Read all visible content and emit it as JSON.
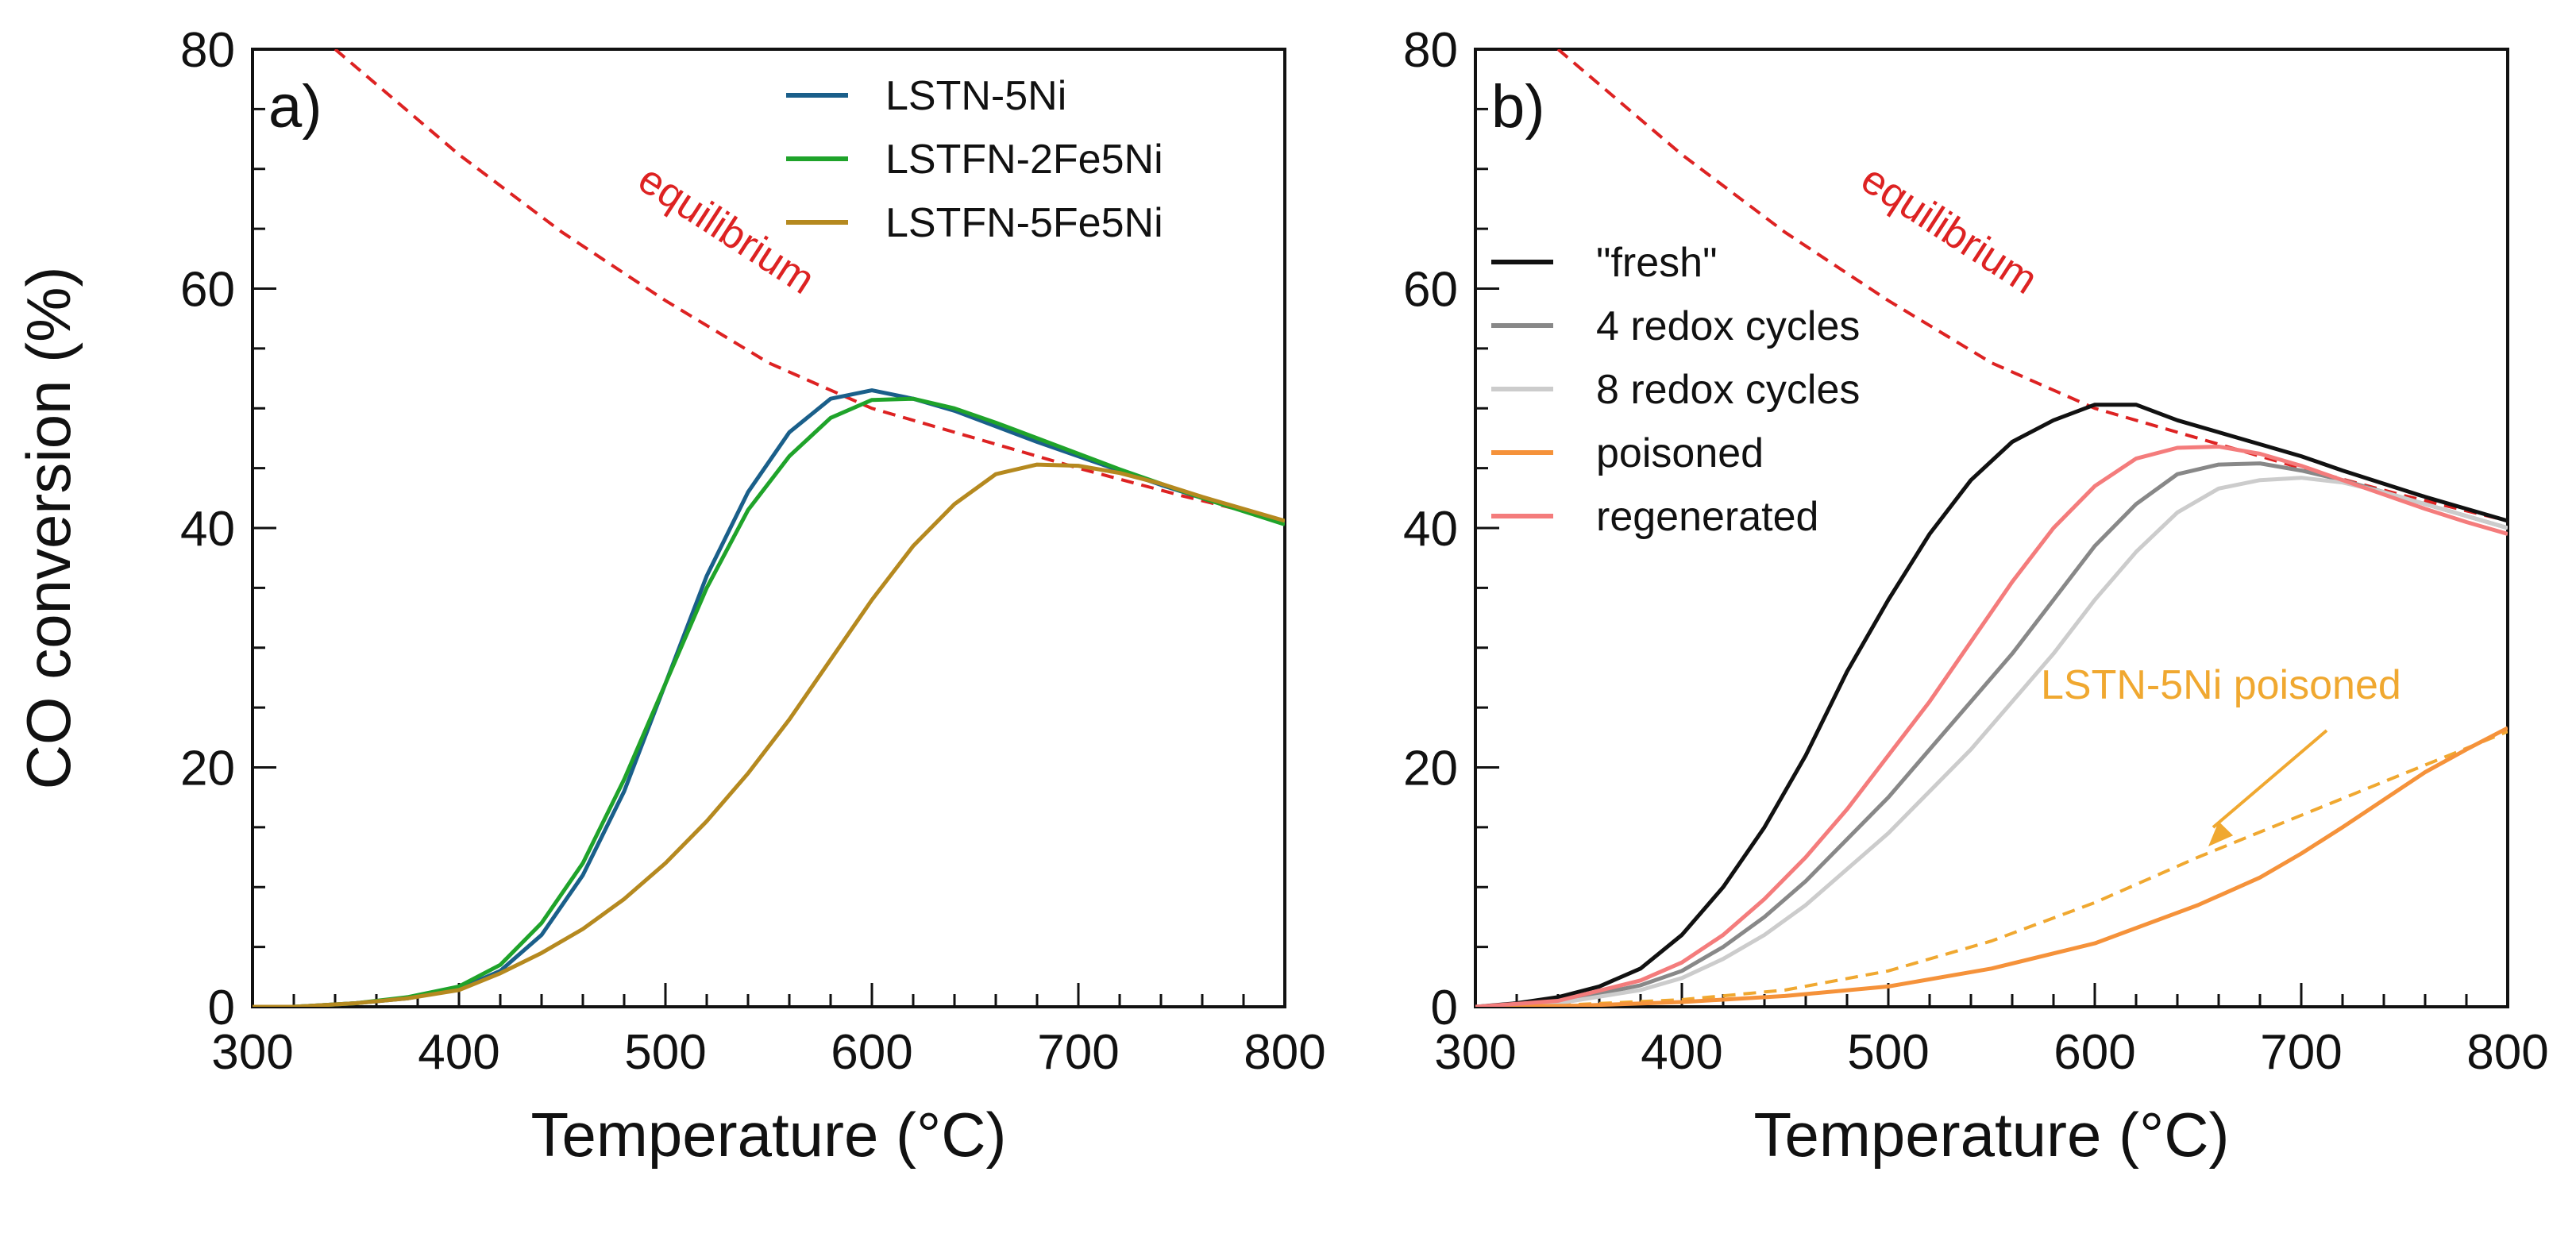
{
  "chart_data": [
    {
      "panel": "a)",
      "type": "line",
      "xlabel": "Temperature (°C)",
      "ylabel": "CO conversion (%)",
      "xlim": [
        300,
        800
      ],
      "ylim": [
        0,
        80
      ],
      "xticks": [
        300,
        400,
        500,
        600,
        700,
        800
      ],
      "yticks": [
        0,
        20,
        40,
        60,
        80
      ],
      "legend_position": "top-right",
      "equilibrium": {
        "label": "equilibrium",
        "color": "#dd2222",
        "x": [
          340,
          400,
          450,
          500,
          550,
          600,
          650,
          700,
          750,
          800
        ],
        "y": [
          80,
          71.2,
          64.7,
          59,
          53.8,
          50,
          47.5,
          45,
          42.7,
          40.6
        ]
      },
      "series": [
        {
          "name": "LSTN-5Ni",
          "color": "#1a5f8a",
          "x": [
            300,
            320,
            350,
            375,
            400,
            420,
            440,
            460,
            480,
            500,
            520,
            540,
            560,
            580,
            600,
            620,
            640,
            660,
            680,
            700,
            720,
            740,
            760,
            780,
            800
          ],
          "y": [
            0,
            0,
            0.3,
            0.7,
            1.5,
            3,
            6,
            11,
            18,
            27,
            36,
            43,
            48,
            50.8,
            51.5,
            50.8,
            49.8,
            48.5,
            47.2,
            46,
            44.8,
            43.6,
            42.5,
            41.5,
            40.5
          ]
        },
        {
          "name": "LSTFN-2Fe5Ni",
          "color": "#1fa32a",
          "x": [
            300,
            320,
            350,
            375,
            400,
            420,
            440,
            460,
            480,
            500,
            520,
            540,
            560,
            580,
            600,
            620,
            640,
            660,
            680,
            700,
            720,
            740,
            760,
            780,
            800
          ],
          "y": [
            0,
            0,
            0.3,
            0.8,
            1.7,
            3.5,
            7,
            12,
            19,
            27,
            35,
            41.5,
            46,
            49.2,
            50.7,
            50.8,
            50,
            48.8,
            47.5,
            46.2,
            44.9,
            43.7,
            42.5,
            41.4,
            40.3
          ]
        },
        {
          "name": "LSTFN-5Fe5Ni",
          "color": "#b5891f",
          "x": [
            300,
            320,
            350,
            375,
            400,
            420,
            440,
            460,
            480,
            500,
            520,
            540,
            560,
            580,
            600,
            620,
            640,
            660,
            680,
            700,
            720,
            740,
            760,
            780,
            800
          ],
          "y": [
            0,
            0,
            0.3,
            0.7,
            1.4,
            2.8,
            4.5,
            6.5,
            9,
            12,
            15.5,
            19.5,
            24,
            29,
            34,
            38.5,
            42,
            44.5,
            45.3,
            45.2,
            44.6,
            43.7,
            42.6,
            41.6,
            40.6
          ]
        }
      ]
    },
    {
      "panel": "b)",
      "type": "line",
      "xlabel": "Temperature (°C)",
      "xlim": [
        300,
        800
      ],
      "ylim": [
        0,
        80
      ],
      "xticks": [
        300,
        400,
        500,
        600,
        700,
        800
      ],
      "yticks": [
        0,
        20,
        40,
        60,
        80
      ],
      "legend_position": "top-left",
      "equilibrium": {
        "label": "equilibrium",
        "color": "#dd2222",
        "x": [
          340,
          400,
          450,
          500,
          550,
          600,
          650,
          700,
          750,
          800
        ],
        "y": [
          80,
          71.2,
          64.7,
          59,
          53.8,
          50,
          47.5,
          45,
          42.7,
          40.6
        ]
      },
      "series": [
        {
          "name": "\"fresh\"",
          "color": "#111111",
          "x": [
            300,
            320,
            340,
            360,
            380,
            400,
            420,
            440,
            460,
            480,
            500,
            520,
            540,
            560,
            580,
            600,
            620,
            640,
            660,
            680,
            700,
            720,
            740,
            760,
            780,
            800
          ],
          "y": [
            0,
            0.3,
            0.8,
            1.7,
            3.2,
            6,
            10,
            15,
            21,
            28,
            34,
            39.5,
            44,
            47.2,
            49,
            50.3,
            50.3,
            49,
            48,
            47,
            46,
            44.8,
            43.7,
            42.6,
            41.6,
            40.6
          ]
        },
        {
          "name": "4 redox cycles",
          "color": "#888888",
          "x": [
            300,
            340,
            380,
            400,
            420,
            440,
            460,
            480,
            500,
            520,
            540,
            560,
            580,
            600,
            620,
            640,
            660,
            680,
            700,
            720,
            740,
            760,
            780,
            800
          ],
          "y": [
            0,
            0.4,
            1.8,
            3,
            5,
            7.5,
            10.5,
            14,
            17.5,
            21.5,
            25.5,
            29.5,
            34,
            38.5,
            42,
            44.5,
            45.3,
            45.4,
            44.8,
            44,
            43,
            42,
            41,
            40
          ]
        },
        {
          "name": "8 redox cycles",
          "color": "#cccccc",
          "x": [
            300,
            340,
            380,
            400,
            420,
            440,
            460,
            480,
            500,
            520,
            540,
            560,
            580,
            600,
            620,
            640,
            660,
            680,
            700,
            720,
            740,
            760,
            780,
            800
          ],
          "y": [
            0,
            0.3,
            1.4,
            2.4,
            4,
            6,
            8.5,
            11.5,
            14.5,
            18,
            21.5,
            25.5,
            29.5,
            34,
            38,
            41.3,
            43.3,
            44,
            44.2,
            43.8,
            43,
            42,
            41,
            40
          ]
        },
        {
          "name": "poisoned",
          "color": "#f5923a",
          "x": [
            300,
            350,
            400,
            450,
            500,
            550,
            600,
            650,
            680,
            700,
            720,
            740,
            760,
            780,
            800
          ],
          "y": [
            0,
            0.1,
            0.4,
            0.9,
            1.7,
            3.2,
            5.3,
            8.5,
            10.8,
            12.8,
            15,
            17.3,
            19.6,
            21.5,
            23.3
          ]
        },
        {
          "name": "regenerated",
          "color": "#f47c7c",
          "x": [
            300,
            340,
            380,
            400,
            420,
            440,
            460,
            480,
            500,
            520,
            540,
            560,
            580,
            600,
            620,
            640,
            660,
            680,
            700,
            720,
            740,
            760,
            780,
            800
          ],
          "y": [
            0,
            0.5,
            2.2,
            3.7,
            6,
            9,
            12.5,
            16.5,
            21,
            25.5,
            30.5,
            35.5,
            40,
            43.5,
            45.8,
            46.7,
            46.8,
            46.2,
            45.2,
            44,
            42.8,
            41.6,
            40.5,
            39.5
          ]
        }
      ],
      "extra_series": [
        {
          "name": "LSTN-5Ni poisoned",
          "color": "#f0a830",
          "dashed": true,
          "x": [
            300,
            350,
            400,
            450,
            500,
            550,
            600,
            650,
            700,
            750,
            800
          ],
          "y": [
            0,
            0.2,
            0.6,
            1.4,
            3,
            5.5,
            8.7,
            12.5,
            16,
            19.5,
            23
          ]
        }
      ],
      "annotations": [
        {
          "text": "LSTN-5Ni poisoned",
          "color": "#f0a830",
          "points_to": {
            "x": 655,
            "y": 13
          }
        }
      ]
    }
  ]
}
